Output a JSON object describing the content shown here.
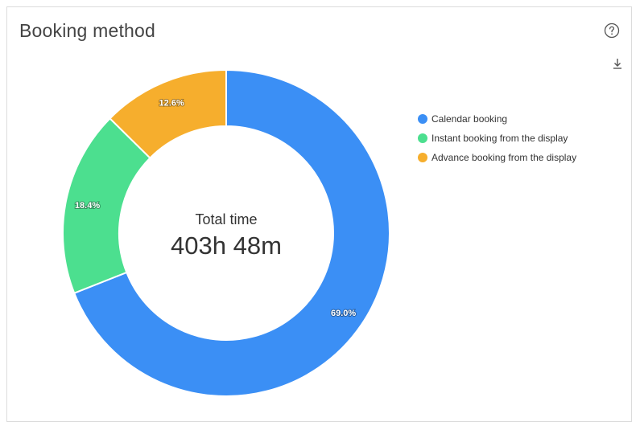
{
  "card": {
    "title": "Booking method"
  },
  "icons": {
    "help": "help-circle-icon",
    "download": "download-icon"
  },
  "center": {
    "label": "Total time",
    "value": "403h 48m"
  },
  "colors": {
    "calendar": "#3b8ff5",
    "instant": "#4cdf8f",
    "advance": "#f6ae2d"
  },
  "chart_data": {
    "type": "pie",
    "variant": "donut",
    "categories": [
      "Calendar booking",
      "Instant booking from the display",
      "Advance booking from the display"
    ],
    "values": [
      69.0,
      18.4,
      12.6
    ],
    "value_labels": [
      "69.0%",
      "18.4%",
      "12.6%"
    ],
    "colors": [
      "#3b8ff5",
      "#4cdf8f",
      "#f6ae2d"
    ],
    "legend_position": "right",
    "start_angle": "top, clockwise"
  }
}
